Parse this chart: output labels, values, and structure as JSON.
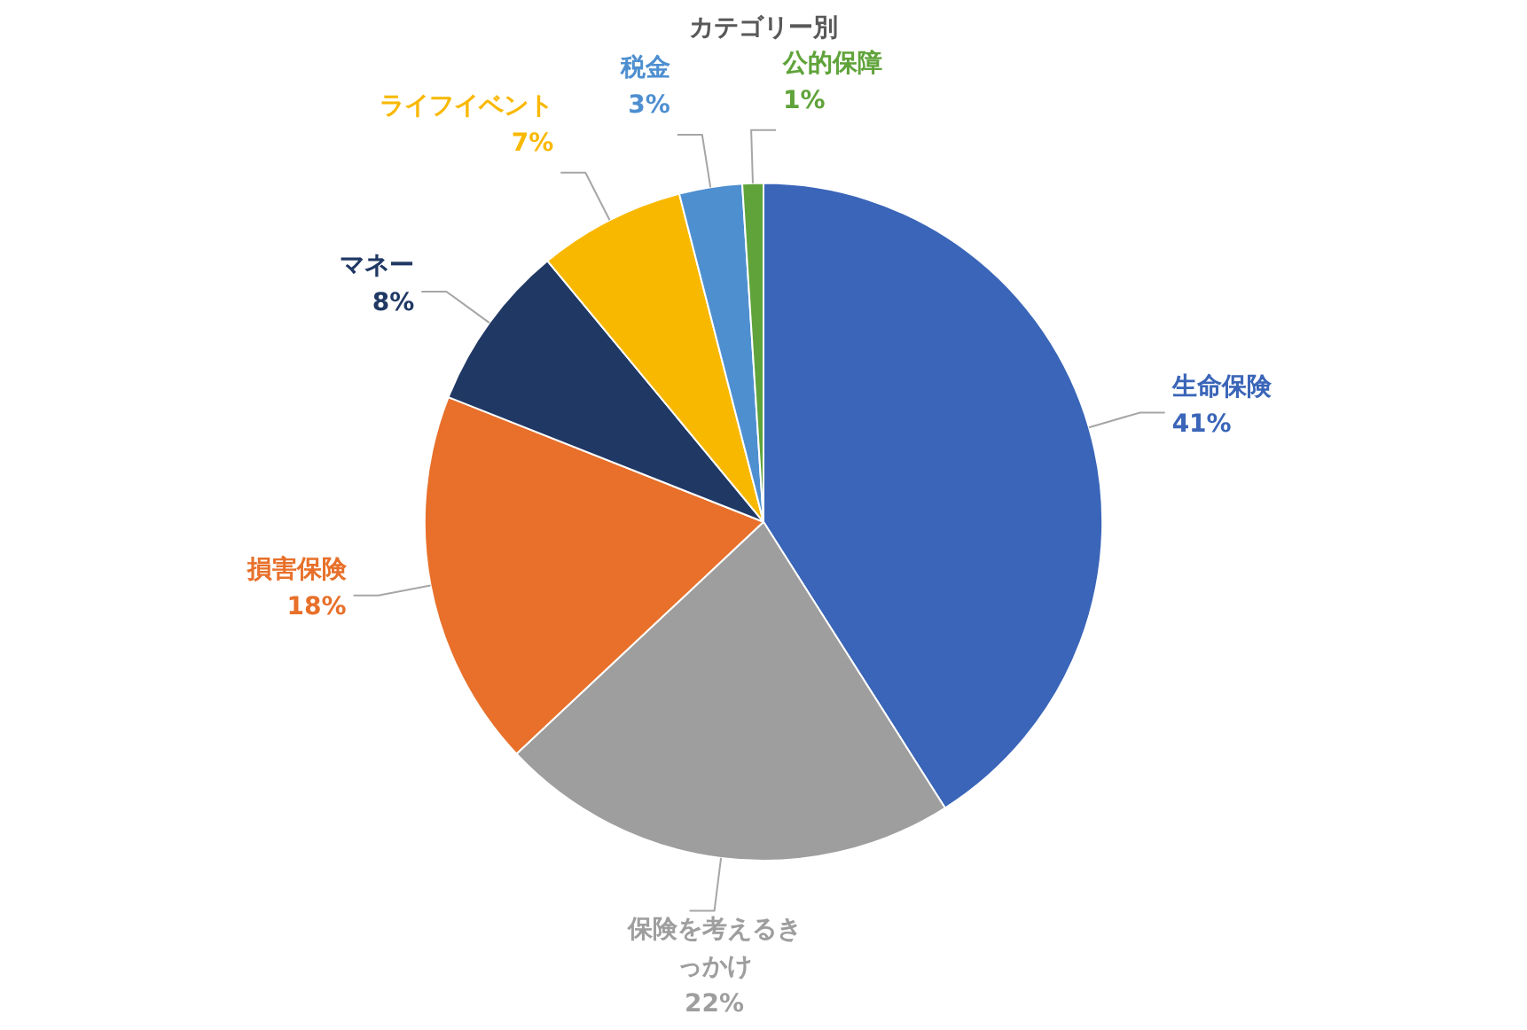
{
  "chart_data": {
    "type": "pie",
    "title": "カテゴリー別",
    "categories": [
      "生命保険",
      "保険を考えるきっかけ",
      "損害保険",
      "マネー",
      "ライフイベント",
      "税金",
      "公的保障"
    ],
    "values": [
      41,
      22,
      18,
      8,
      7,
      3,
      1
    ],
    "value_labels": [
      "41%",
      "22%",
      "18%",
      "8%",
      "7%",
      "3%",
      "1%"
    ],
    "colors": [
      "#3a65b8",
      "#9e9e9e",
      "#e8702a",
      "#203864",
      "#f9b800",
      "#4e8fd0",
      "#5fa33a"
    ],
    "legend": false
  }
}
